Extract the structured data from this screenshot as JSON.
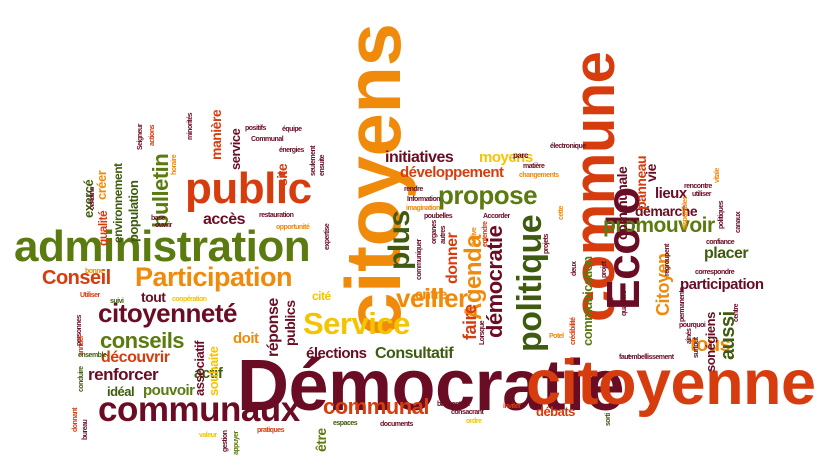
{
  "palette": {
    "red": "#d73c0f",
    "orange": "#f08a0b",
    "yellow": "#f5c400",
    "green": "#5b7a0f",
    "maroon": "#6a0d24",
    "darkgreen": "#3f5b10",
    "olive": "#8a8a12"
  },
  "words": {
    "democratie": "Démocratie",
    "citoyenne": "citoyenne",
    "citoyens": "citoyens",
    "commune": "commune",
    "administration": "administration",
    "public": "public",
    "communaux": "communaux",
    "service": "Service",
    "participation": "Participation",
    "citoyennete": "citoyenneté",
    "ecolo": "Ecolo",
    "politique": "politique",
    "propose": "propose",
    "promouvoir": "promouvoir",
    "veiller": "veiller",
    "conseils": "conseils",
    "communal": "communal",
    "conseil": "Conseil",
    "agenda": "Agenda",
    "plus": "plus",
    "democratie2": "démocratie",
    "initiatives": "initiatives",
    "developpement": "développement",
    "moyens": "moyens",
    "consultatif": "Consultatif",
    "elections": "élections",
    "decouvrir": "découvrir",
    "renforcer": "renforcer",
    "acces": "accès",
    "bulletin": "bulletin",
    "tous": "tous",
    "aussi": "aussi",
    "lieux": "lieux",
    "demarche": "démarche",
    "participation2": "participation",
    "placer": "placer",
    "debats": "débats",
    "pouvoir": "pouvoir",
    "ideal": "idéal",
    "actif": "actif",
    "doit": "doit",
    "tout": "tout",
    "reponse": "réponse",
    "faire": "faire",
    "entre": "entre",
    "donner": "donner",
    "manieres": "manière",
    "site": "site",
    "population": "population",
    "environnement": "environnement",
    "exerce": "exercé",
    "creer": "créer",
    "qualite": "qualité",
    "cite": "cité",
    "publics": "publics",
    "associatif": "associatif",
    "souhaite": "souhaite",
    "panneau": "panneau",
    "communale": "communale",
    "vie": "vie",
    "citoyen": "Citoyen",
    "communication": "communication",
    "sonegiens": "sonégiens",
    "etre": "être",
    "service2": "service",
    "fragments": {
      "f1": "bonne",
      "f2": "Utiliser",
      "f3": "personnes",
      "f4": "annuel",
      "f5": "ensemble",
      "f6": "conduire",
      "f7": "bureau",
      "f8": "donnant",
      "f9": "valeur",
      "f10": "appuyer",
      "f11": "pratiques",
      "f12": "gestion",
      "f13": "espaces",
      "f14": "documents",
      "f15": "ordre",
      "f16": "inviter",
      "f17": "consacrant",
      "f18": "bancontact",
      "f19": "faut",
      "f20": "embellissement",
      "f21": "sorti",
      "f22": "électronique",
      "f23": "parc",
      "f24": "Information",
      "f25": "imagination",
      "f26": "poubelles",
      "f27": "Accorder",
      "f28": "rendre",
      "f29": "matière",
      "f30": "changements",
      "f31": "positifs",
      "f32": "Communal",
      "f33": "énergies",
      "f34": "opportunité",
      "f35": "restauration",
      "f36": "équipe",
      "f37": "horaire",
      "f38": "minorités",
      "f39": "actions",
      "f40": "base",
      "f41": "ouvrir",
      "f42": "suivi",
      "f43": "coopération",
      "f44": "rencontre",
      "f45": "utiliser",
      "f46": "confiance",
      "f47": "regroupent",
      "f48": "correspondre",
      "f49": "pourquoi",
      "f50": "quartiers",
      "f51": "centre",
      "f52": "canaux",
      "f53": "vitale",
      "f54": "politiques",
      "f55": "disponibles",
      "f56": "projets",
      "f57": "deux",
      "f58": "projet",
      "f59": "crédibilité",
      "f60": "Lorsque",
      "f61": "organes",
      "f62": "autres",
      "f63": "tardive",
      "f64": "entendre",
      "f65": "expertise",
      "f66": "certains",
      "f67": "Seigneur",
      "f68": "surtout",
      "f69": "permanente",
      "f70": "aînés",
      "f71": "cette",
      "f72": "Potel",
      "f73": "communiquer",
      "f74": "seulement",
      "f75": "ensuite"
    }
  }
}
